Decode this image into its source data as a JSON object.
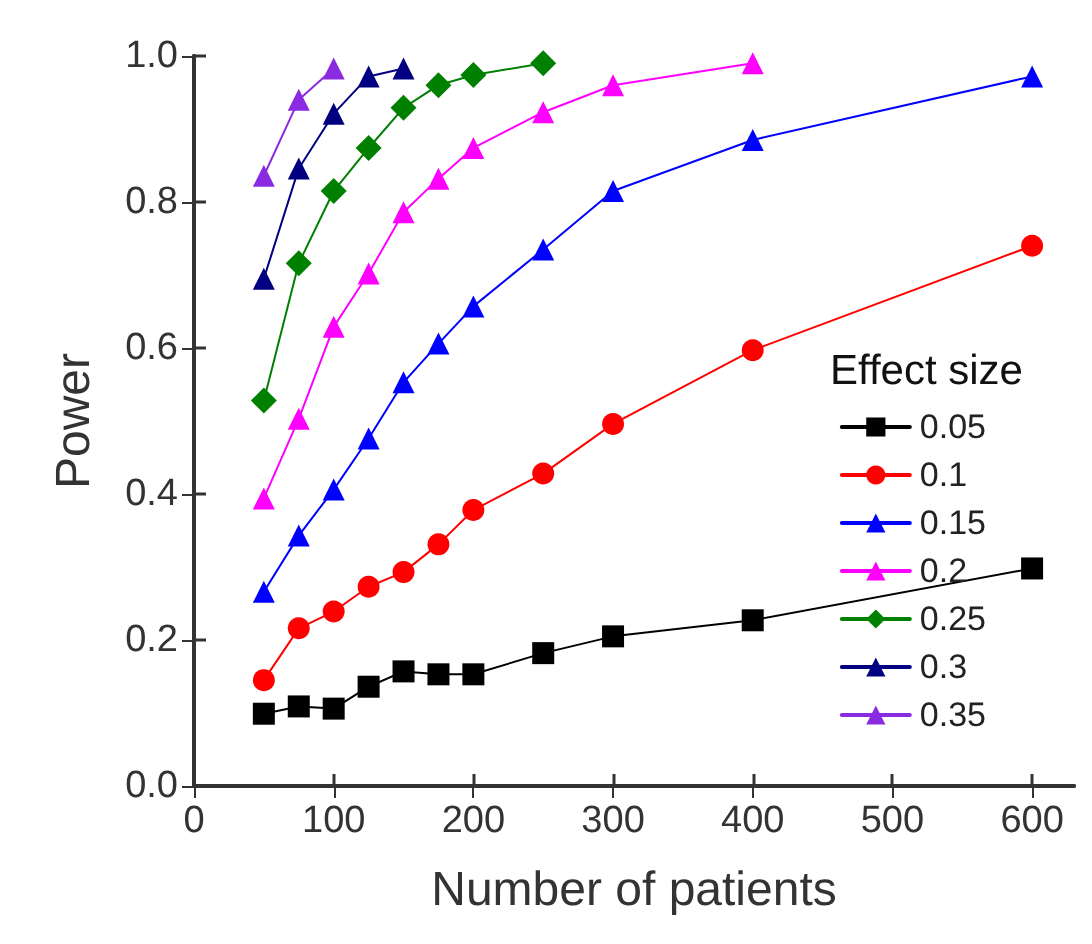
{
  "chart_data": {
    "type": "line",
    "xlabel": "Number of patients",
    "ylabel": "Power",
    "legend_title": "Effect size",
    "legend": "bottom right",
    "grid": false,
    "xlim": [
      0,
      630
    ],
    "xticks": [
      0,
      100,
      200,
      300,
      400,
      500,
      600
    ],
    "ylim": [
      0,
      1
    ],
    "yticks": [
      {
        "value": 0,
        "label": "0.0"
      },
      {
        "value": 0.2,
        "label": "0.2"
      },
      {
        "value": 0.4,
        "label": "0.4"
      },
      {
        "value": 0.6,
        "label": "0.6"
      },
      {
        "value": 0.8,
        "label": "0.8"
      },
      {
        "value": 1,
        "label": "1.0"
      }
    ],
    "series": [
      {
        "name": "0.05",
        "color": "#000000",
        "marker": "square",
        "x": [
          50,
          75,
          100,
          125,
          150,
          175,
          200,
          250,
          300,
          400,
          600
        ],
        "values": [
          0.099,
          0.109,
          0.106,
          0.136,
          0.157,
          0.153,
          0.153,
          0.182,
          0.205,
          0.227,
          0.298
        ]
      },
      {
        "name": "0.1",
        "color": "#ff0000",
        "marker": "circle",
        "x": [
          50,
          75,
          100,
          125,
          150,
          175,
          200,
          250,
          300,
          400,
          600
        ],
        "values": [
          0.145,
          0.216,
          0.239,
          0.273,
          0.293,
          0.331,
          0.378,
          0.428,
          0.496,
          0.597,
          0.74
        ]
      },
      {
        "name": "0.15",
        "color": "#0000ff",
        "marker": "triangle",
        "x": [
          50,
          75,
          100,
          125,
          150,
          175,
          200,
          250,
          300,
          400,
          600
        ],
        "values": [
          0.266,
          0.343,
          0.406,
          0.476,
          0.553,
          0.606,
          0.657,
          0.735,
          0.815,
          0.885,
          0.972
        ]
      },
      {
        "name": "0.2",
        "color": "#ff00ff",
        "marker": "triangle",
        "x": [
          50,
          75,
          100,
          125,
          150,
          175,
          200,
          250,
          300,
          400
        ],
        "values": [
          0.394,
          0.503,
          0.629,
          0.702,
          0.786,
          0.832,
          0.874,
          0.923,
          0.96,
          0.99
        ]
      },
      {
        "name": "0.25",
        "color": "#008000",
        "marker": "diamond",
        "x": [
          50,
          75,
          100,
          125,
          150,
          175,
          200,
          250
        ],
        "values": [
          0.528,
          0.716,
          0.815,
          0.874,
          0.929,
          0.96,
          0.974,
          0.99
        ]
      },
      {
        "name": "0.3",
        "color": "#000080",
        "marker": "triangle",
        "x": [
          50,
          75,
          100,
          125,
          150
        ],
        "values": [
          0.695,
          0.846,
          0.921,
          0.972,
          0.983
        ]
      },
      {
        "name": "0.35",
        "color": "#8a2be2",
        "marker": "triangle",
        "x": [
          50,
          75,
          100
        ],
        "values": [
          0.836,
          0.94,
          0.983
        ]
      }
    ]
  }
}
